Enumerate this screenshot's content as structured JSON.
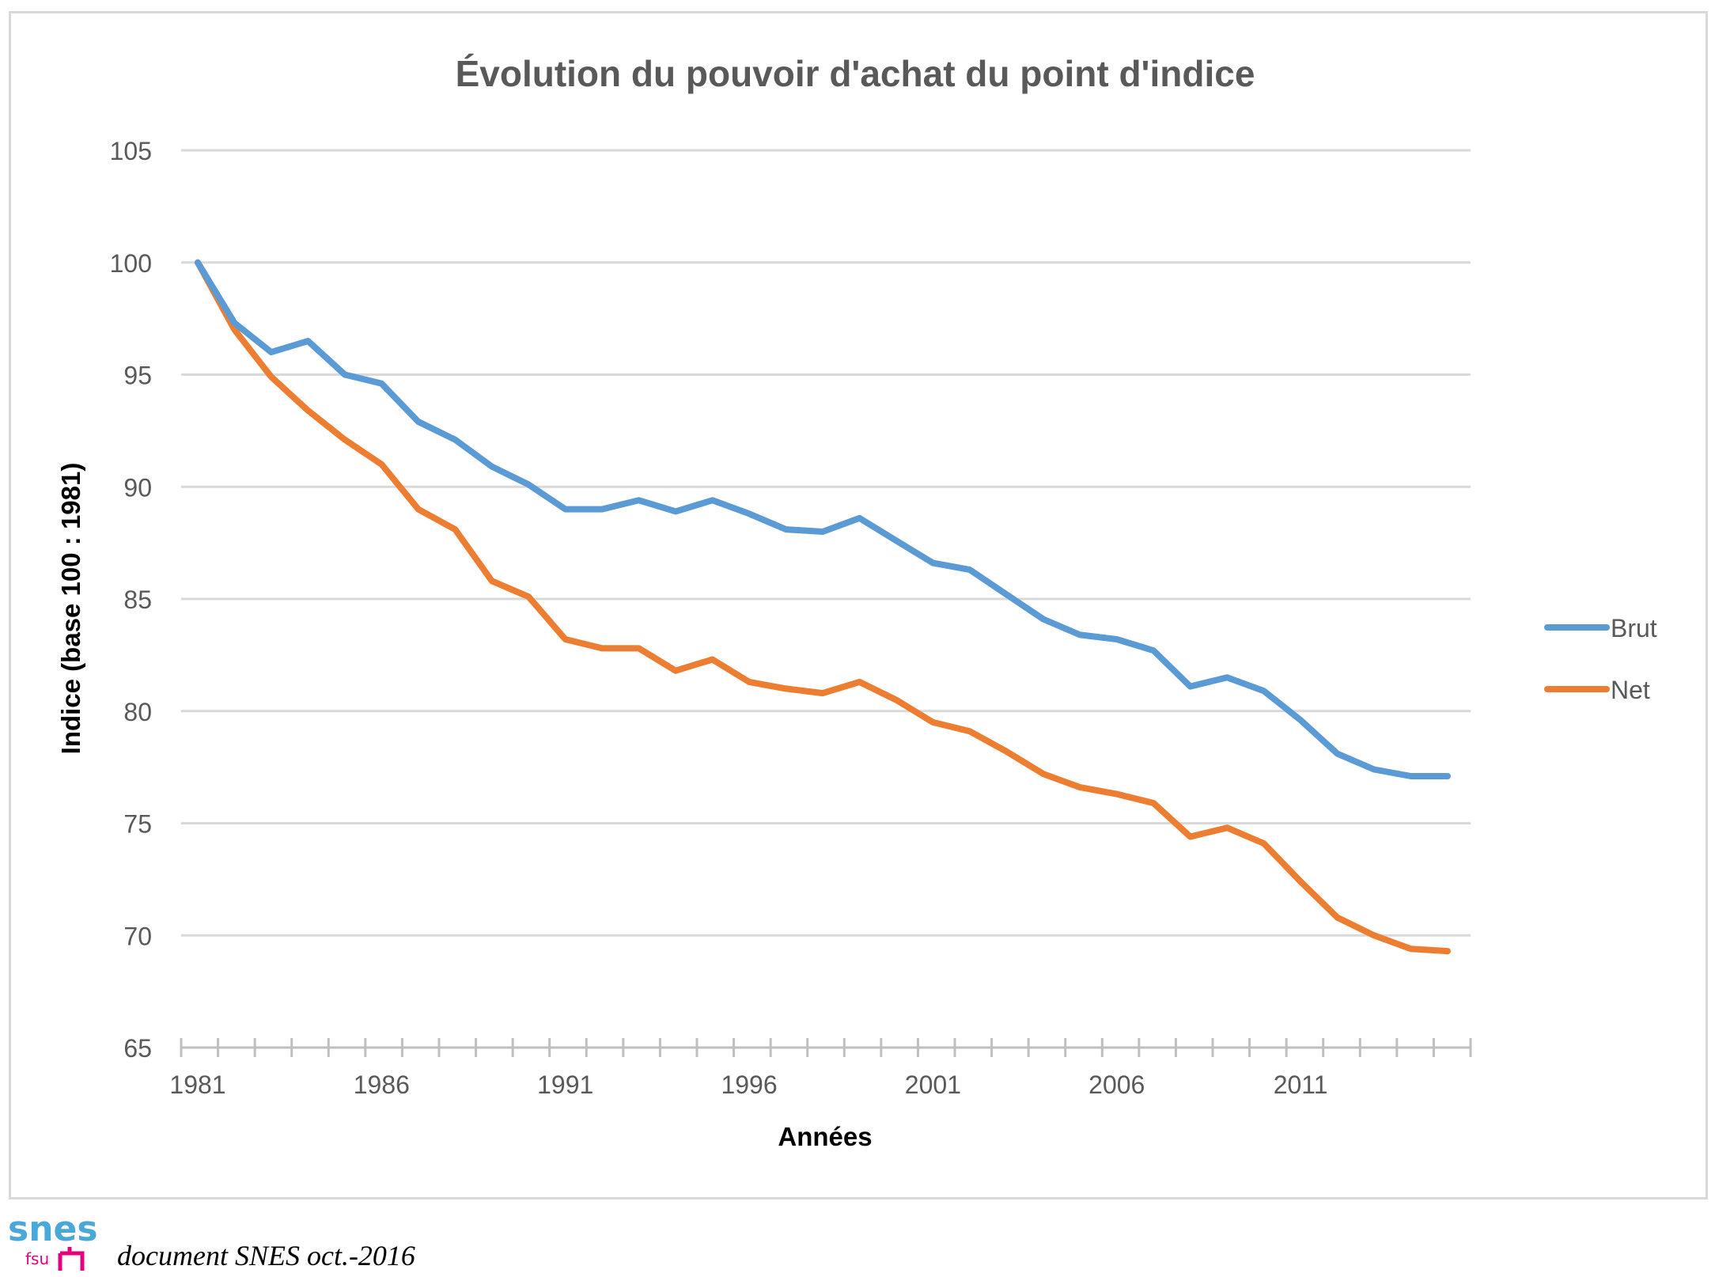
{
  "chart_data": {
    "type": "line",
    "title": "Évolution du pouvoir d'achat du point d'indice",
    "xlabel": "Années",
    "ylabel": "Indice (base 100 : 1981)",
    "xlim": [
      1981,
      2015
    ],
    "ylim": [
      65,
      105
    ],
    "y_ticks": [
      65,
      70,
      75,
      80,
      85,
      90,
      95,
      100,
      105
    ],
    "x_tick_labels": [
      1981,
      1986,
      1991,
      1996,
      2001,
      2006,
      2011
    ],
    "grid": "horizontal",
    "legend_position": "right",
    "x": [
      1981,
      1982,
      1983,
      1984,
      1985,
      1986,
      1987,
      1988,
      1989,
      1990,
      1991,
      1992,
      1993,
      1994,
      1995,
      1996,
      1997,
      1998,
      1999,
      2000,
      2001,
      2002,
      2003,
      2004,
      2005,
      2006,
      2007,
      2008,
      2009,
      2010,
      2011,
      2012,
      2013,
      2014,
      2015
    ],
    "series": [
      {
        "name": "Brut",
        "color": "#5b9bd5",
        "values": [
          100,
          97.3,
          96.0,
          96.5,
          95.0,
          94.6,
          92.9,
          92.1,
          90.9,
          90.1,
          89.0,
          89.0,
          89.4,
          88.9,
          89.4,
          88.8,
          88.1,
          88.0,
          88.6,
          87.6,
          86.6,
          86.3,
          85.2,
          84.1,
          83.4,
          83.2,
          82.7,
          81.1,
          81.5,
          80.9,
          79.6,
          78.1,
          77.4,
          77.1,
          77.1
        ]
      },
      {
        "name": "Net",
        "color": "#ed7d31",
        "values": [
          100,
          97.0,
          94.9,
          93.4,
          92.1,
          91.0,
          89.0,
          88.1,
          85.8,
          85.1,
          83.2,
          82.8,
          82.8,
          81.8,
          82.3,
          81.3,
          81.0,
          80.8,
          81.3,
          80.5,
          79.5,
          79.1,
          78.2,
          77.2,
          76.6,
          76.3,
          75.9,
          74.4,
          74.8,
          74.1,
          72.4,
          70.8,
          70.0,
          69.4,
          69.3
        ]
      }
    ]
  },
  "footer": {
    "logo_text_top": "snes",
    "logo_text_bottom": "fsu",
    "caption": "document SNES oct.-2016"
  }
}
